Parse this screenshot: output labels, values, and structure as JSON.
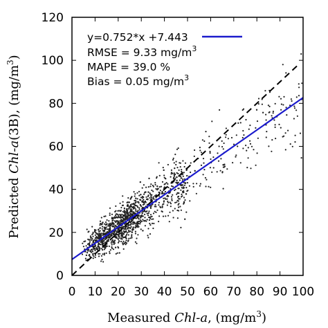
{
  "chart_data": {
    "type": "scatter",
    "xlabel": {
      "prefix": "Measured ",
      "italic": "Chl-a",
      "suffix": ", (mg/m",
      "sup": "3",
      "close": ")"
    },
    "ylabel": {
      "prefix": "Predicted ",
      "italic": "Chl-a",
      "suffix": "(3B), (mg/m",
      "sup": "3",
      "close": ")"
    },
    "xlim": [
      0,
      100
    ],
    "ylim": [
      0,
      120
    ],
    "x_ticks": [
      "0",
      "10",
      "20",
      "30",
      "40",
      "50",
      "60",
      "70",
      "80",
      "90",
      "100"
    ],
    "y_ticks": [
      "0",
      "20",
      "40",
      "60",
      "80",
      "100",
      "120"
    ],
    "grid": false,
    "legend_position": "top-left",
    "annotations": {
      "fit_label": "y=0.752*x +7.443",
      "rmse": {
        "text": "RMSE = 9.33 mg/m",
        "sup": "3"
      },
      "mape": "MAPE = 39.0 %",
      "bias": {
        "text": "Bias = 0.05 mg/m",
        "sup": "3"
      }
    },
    "fit_line": {
      "slope": 0.752,
      "intercept": 7.443,
      "x_range": [
        0,
        100
      ],
      "color": "#1a1acc"
    },
    "identity_line": {
      "slope": 1,
      "intercept": 0,
      "x_range": [
        0,
        98
      ],
      "style": "dashed",
      "color": "#000000"
    },
    "scatter": {
      "n_points_approx": 1500,
      "color": "#222222",
      "description_clusters": [
        {
          "x_range": [
            2,
            15
          ],
          "y_range": [
            5,
            35
          ]
        },
        {
          "x_range": [
            15,
            40
          ],
          "y_range": [
            10,
            50
          ]
        },
        {
          "x_range": [
            40,
            70
          ],
          "y_range": [
            25,
            75
          ]
        },
        {
          "x_range": [
            70,
            100
          ],
          "y_range": [
            45,
            100
          ]
        }
      ]
    }
  }
}
